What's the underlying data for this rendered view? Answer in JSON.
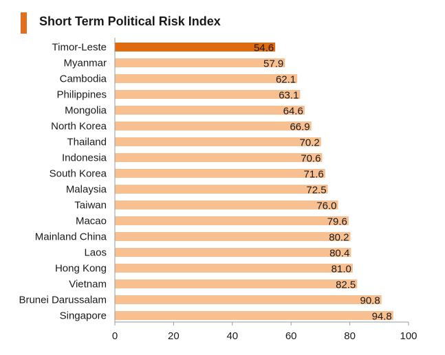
{
  "title": "Short Term Political Risk Index",
  "colors": {
    "accent": "#e07020",
    "highlight_bar": "#e06a10",
    "bar": "#f8c090",
    "text": "#1a1a1a",
    "axis": "#9a9a9a"
  },
  "chart_data": {
    "type": "bar",
    "orientation": "horizontal",
    "title": "Short Term Political Risk Index",
    "xlabel": "",
    "ylabel": "",
    "xlim": [
      0,
      100
    ],
    "x_ticks": [
      "0",
      "20",
      "40",
      "60",
      "80",
      "100"
    ],
    "grid": false,
    "highlight_category": "Timor-Leste",
    "categories": [
      "Timor-Leste",
      "Myanmar",
      "Cambodia",
      "Philippines",
      "Mongolia",
      "North Korea",
      "Thailand",
      "Indonesia",
      "South Korea",
      "Malaysia",
      "Taiwan",
      "Macao",
      "Mainland China",
      "Laos",
      "Hong Kong",
      "Vietnam",
      "Brunei Darussalam",
      "Singapore"
    ],
    "values": [
      54.6,
      57.9,
      62.1,
      63.1,
      64.6,
      66.9,
      70.2,
      70.6,
      71.6,
      72.5,
      76.0,
      79.6,
      80.2,
      80.4,
      81.0,
      82.5,
      90.8,
      94.8
    ],
    "value_labels": [
      "54.6",
      "57.9",
      "62.1",
      "63.1",
      "64.6",
      "66.9",
      "70.2",
      "70.6",
      "71.6",
      "72.5",
      "76.0",
      "79.6",
      "80.2",
      "80.4",
      "81.0",
      "82.5",
      "90.8",
      "94.8"
    ]
  }
}
